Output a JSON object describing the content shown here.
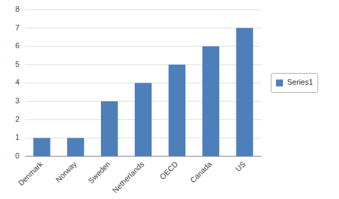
{
  "chart_data": {
    "type": "bar",
    "categories": [
      "Denmark",
      "Norway",
      "Sweden",
      "Netherlands",
      "OECD",
      "Canada",
      "US"
    ],
    "series": [
      {
        "name": "Series1",
        "color": "#4d7fba",
        "values": [
          1,
          1,
          3,
          4,
          5,
          6,
          7
        ]
      }
    ],
    "ylim": [
      0,
      8
    ],
    "yticks": [
      0,
      1,
      2,
      3,
      4,
      5,
      6,
      7,
      8
    ],
    "grid": true,
    "legend": "right"
  }
}
